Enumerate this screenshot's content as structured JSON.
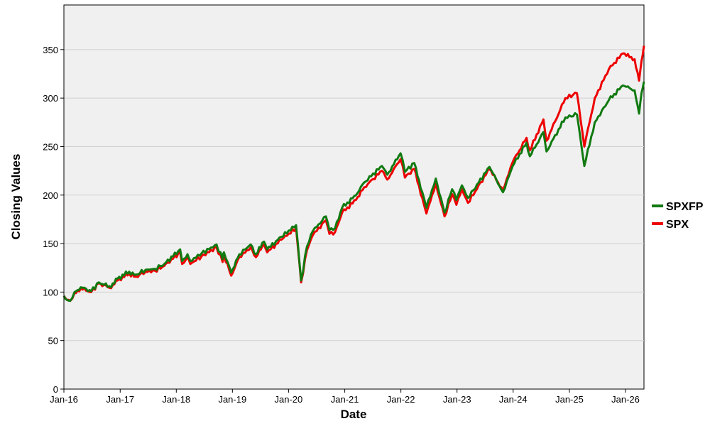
{
  "chart_data": {
    "type": "line",
    "title": "",
    "xlabel": "Date",
    "ylabel": "Closing Values",
    "ylim": [
      0,
      396
    ],
    "xlim": [
      "2016-01-01",
      "2026-05-01"
    ],
    "yticks": [
      0,
      50,
      100,
      150,
      200,
      250,
      300,
      350
    ],
    "xticks": [
      {
        "label": "Jan-16",
        "date": "2016-01-01"
      },
      {
        "label": "Jan-17",
        "date": "2017-01-01"
      },
      {
        "label": "Jan-18",
        "date": "2018-01-01"
      },
      {
        "label": "Jan-19",
        "date": "2019-01-01"
      },
      {
        "label": "Jan-20",
        "date": "2020-01-01"
      },
      {
        "label": "Jan-21",
        "date": "2021-01-01"
      },
      {
        "label": "Jan-22",
        "date": "2022-01-01"
      },
      {
        "label": "Jan-23",
        "date": "2023-01-01"
      },
      {
        "label": "Jan-24",
        "date": "2024-01-01"
      },
      {
        "label": "Jan-25",
        "date": "2025-01-01"
      },
      {
        "label": "Jan-26",
        "date": "2026-01-01"
      }
    ],
    "grid": {
      "horizontal": true,
      "vertical": false
    },
    "legend_position": "right",
    "plot_background": "#f0f0f0",
    "series": [
      {
        "name": "SPX",
        "color": "#ee0000",
        "points": [
          [
            "2016-01-01",
            96
          ],
          [
            "2016-01-20",
            92
          ],
          [
            "2016-02-11",
            91
          ],
          [
            "2016-03-10",
            99
          ],
          [
            "2016-04-20",
            104
          ],
          [
            "2016-06-27",
            100
          ],
          [
            "2016-08-15",
            109
          ],
          [
            "2016-11-03",
            104
          ],
          [
            "2016-12-15",
            112
          ],
          [
            "2017-03-01",
            119
          ],
          [
            "2017-04-13",
            116
          ],
          [
            "2017-06-15",
            121
          ],
          [
            "2017-08-15",
            122
          ],
          [
            "2017-10-15",
            127
          ],
          [
            "2018-01-26",
            141
          ],
          [
            "2018-02-08",
            129
          ],
          [
            "2018-03-15",
            136
          ],
          [
            "2018-04-02",
            129
          ],
          [
            "2018-06-15",
            137
          ],
          [
            "2018-09-20",
            146
          ],
          [
            "2018-10-29",
            131
          ],
          [
            "2018-11-07",
            138
          ],
          [
            "2018-12-24",
            117
          ],
          [
            "2019-02-15",
            136
          ],
          [
            "2019-04-30",
            146
          ],
          [
            "2019-06-03",
            136
          ],
          [
            "2019-07-26",
            149
          ],
          [
            "2019-08-15",
            141
          ],
          [
            "2019-11-15",
            154
          ],
          [
            "2020-02-19",
            166
          ],
          [
            "2020-03-23",
            110
          ],
          [
            "2020-04-30",
            143
          ],
          [
            "2020-06-08",
            159
          ],
          [
            "2020-08-31",
            174
          ],
          [
            "2020-09-23",
            160
          ],
          [
            "2020-10-30",
            162
          ],
          [
            "2020-12-15",
            182
          ],
          [
            "2021-03-15",
            195
          ],
          [
            "2021-05-07",
            208
          ],
          [
            "2021-08-31",
            225
          ],
          [
            "2021-10-04",
            216
          ],
          [
            "2021-12-30",
            237
          ],
          [
            "2022-01-27",
            218
          ],
          [
            "2022-03-29",
            227
          ],
          [
            "2022-05-20",
            197
          ],
          [
            "2022-06-16",
            181
          ],
          [
            "2022-08-16",
            212
          ],
          [
            "2022-10-12",
            178
          ],
          [
            "2022-11-30",
            201
          ],
          [
            "2022-12-28",
            190
          ],
          [
            "2023-02-02",
            206
          ],
          [
            "2023-03-13",
            192
          ],
          [
            "2023-07-31",
            227
          ],
          [
            "2023-10-27",
            205
          ],
          [
            "2023-12-29",
            234
          ],
          [
            "2024-03-28",
            259
          ],
          [
            "2024-04-19",
            246
          ],
          [
            "2024-07-16",
            278
          ],
          [
            "2024-08-05",
            256
          ],
          [
            "2024-12-06",
            300
          ],
          [
            "2025-02-19",
            305
          ],
          [
            "2025-04-08",
            250
          ],
          [
            "2025-06-15",
            300
          ],
          [
            "2025-09-15",
            330
          ],
          [
            "2025-12-15",
            346
          ],
          [
            "2026-03-01",
            340
          ],
          [
            "2026-03-30",
            318
          ],
          [
            "2026-04-15",
            338
          ],
          [
            "2026-05-01",
            354
          ]
        ]
      },
      {
        "name": "SPXFP",
        "color": "#117a11",
        "points": [
          [
            "2016-01-01",
            96
          ],
          [
            "2016-01-20",
            92
          ],
          [
            "2016-02-11",
            91
          ],
          [
            "2016-03-10",
            100
          ],
          [
            "2016-04-20",
            105
          ],
          [
            "2016-06-27",
            101
          ],
          [
            "2016-08-15",
            110
          ],
          [
            "2016-11-03",
            105
          ],
          [
            "2016-12-15",
            114
          ],
          [
            "2017-03-01",
            121
          ],
          [
            "2017-04-13",
            118
          ],
          [
            "2017-06-15",
            123
          ],
          [
            "2017-08-15",
            124
          ],
          [
            "2017-10-15",
            129
          ],
          [
            "2018-01-26",
            144
          ],
          [
            "2018-02-08",
            132
          ],
          [
            "2018-03-15",
            139
          ],
          [
            "2018-04-02",
            132
          ],
          [
            "2018-06-15",
            140
          ],
          [
            "2018-09-20",
            149
          ],
          [
            "2018-10-29",
            134
          ],
          [
            "2018-11-07",
            141
          ],
          [
            "2018-12-24",
            120
          ],
          [
            "2019-02-15",
            139
          ],
          [
            "2019-04-30",
            149
          ],
          [
            "2019-06-03",
            139
          ],
          [
            "2019-07-26",
            152
          ],
          [
            "2019-08-15",
            144
          ],
          [
            "2019-11-15",
            157
          ],
          [
            "2020-02-19",
            169
          ],
          [
            "2020-03-23",
            112
          ],
          [
            "2020-04-30",
            147
          ],
          [
            "2020-06-08",
            163
          ],
          [
            "2020-08-31",
            178
          ],
          [
            "2020-09-23",
            164
          ],
          [
            "2020-10-30",
            166
          ],
          [
            "2020-12-15",
            187
          ],
          [
            "2021-03-15",
            200
          ],
          [
            "2021-05-07",
            213
          ],
          [
            "2021-08-31",
            230
          ],
          [
            "2021-10-04",
            221
          ],
          [
            "2021-12-30",
            243
          ],
          [
            "2022-01-27",
            224
          ],
          [
            "2022-03-29",
            233
          ],
          [
            "2022-05-20",
            203
          ],
          [
            "2022-06-16",
            187
          ],
          [
            "2022-08-16",
            217
          ],
          [
            "2022-10-12",
            182
          ],
          [
            "2022-11-30",
            206
          ],
          [
            "2022-12-28",
            195
          ],
          [
            "2023-02-02",
            210
          ],
          [
            "2023-03-13",
            197
          ],
          [
            "2023-07-31",
            229
          ],
          [
            "2023-10-27",
            203
          ],
          [
            "2023-12-29",
            230
          ],
          [
            "2024-03-28",
            254
          ],
          [
            "2024-04-19",
            240
          ],
          [
            "2024-07-16",
            265
          ],
          [
            "2024-08-05",
            245
          ],
          [
            "2024-12-06",
            280
          ],
          [
            "2025-02-19",
            283
          ],
          [
            "2025-04-08",
            230
          ],
          [
            "2025-06-15",
            275
          ],
          [
            "2025-09-15",
            298
          ],
          [
            "2025-12-15",
            313
          ],
          [
            "2026-03-01",
            308
          ],
          [
            "2026-03-30",
            284
          ],
          [
            "2026-04-15",
            305
          ],
          [
            "2026-05-01",
            317
          ]
        ]
      }
    ],
    "legend": [
      "SPXFP",
      "SPX"
    ]
  }
}
